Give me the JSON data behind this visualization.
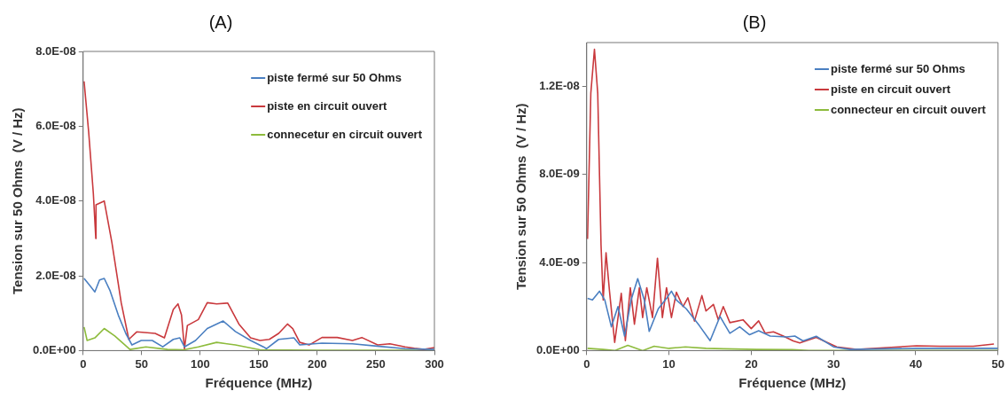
{
  "chart_data": [
    {
      "type": "line",
      "title": "(A)",
      "xlabel": "Fréquence (MHz)",
      "ylabel": "Tension sur 50 Ohms  (V / Hz)",
      "xlim": [
        0,
        300
      ],
      "xticks": [
        0,
        50,
        100,
        150,
        200,
        250,
        300
      ],
      "ylim": [
        0,
        8e-08
      ],
      "yticks": [
        {
          "value": 0,
          "label": "0.0E+00"
        },
        {
          "value": 2e-08,
          "label": "2.0E-08"
        },
        {
          "value": 4e-08,
          "label": "4.0E-08"
        },
        {
          "value": 6e-08,
          "label": "6.0E-08"
        },
        {
          "value": 8e-08,
          "label": "8.0E-08"
        }
      ],
      "grid": false,
      "legend": "top right",
      "marker": "none",
      "line_style": "solid",
      "series": [
        {
          "name": "piste fermé sur 50 Ohms",
          "color": "#4a7fc1",
          "x": [
            0.8,
            6,
            10,
            14,
            18,
            23,
            30,
            36.4,
            41.7,
            49.6,
            59,
            68,
            77,
            82.6,
            86.5,
            96,
            106,
            119.6,
            130,
            143,
            154,
            156.5,
            167,
            180,
            185,
            204,
            230,
            251,
            275,
            300
          ],
          "values": [
            1.93e-08,
            1.73e-08,
            1.57e-08,
            1.89e-08,
            1.93e-08,
            1.6e-08,
            9.5e-09,
            4.6e-09,
            1.5e-09,
            2.7e-09,
            2.7e-09,
            1e-09,
            3e-09,
            3.4e-09,
            1e-09,
            2.7e-09,
            5.9e-09,
            7.9e-09,
            5.1e-09,
            2.7e-09,
            1e-09,
            5e-10,
            3e-09,
            3.4e-09,
            1.5e-09,
            2e-09,
            1.8e-09,
            1.2e-09,
            5e-10,
            3e-10
          ]
        },
        {
          "name": "piste en circuit ouvert",
          "color": "#c9393d",
          "x": [
            0.8,
            4.7,
            8.7,
            10.8,
            11,
            18,
            24.5,
            32.5,
            39,
            45.7,
            61.5,
            69.4,
            77,
            81,
            84,
            86.5,
            89,
            98.4,
            106,
            114,
            123.5,
            133,
            143,
            151,
            159,
            167,
            174.5,
            179,
            185,
            193,
            204,
            217,
            230,
            238,
            251.5,
            262,
            275,
            283,
            291,
            300
          ],
          "values": [
            7.2e-08,
            5.85e-08,
            4.2e-08,
            3e-08,
            3.9e-08,
            4e-08,
            2.9e-08,
            1.28e-08,
            3e-09,
            5e-09,
            4.6e-09,
            3.4e-09,
            1.1e-08,
            1.25e-08,
            9.5e-09,
            5e-10,
            6.7e-09,
            8.3e-09,
            1.28e-08,
            1.25e-08,
            1.27e-08,
            7.1e-09,
            3.4e-09,
            2.7e-09,
            3e-09,
            4.6e-09,
            7.1e-09,
            5.9e-09,
            2.2e-09,
            1.5e-09,
            3.5e-09,
            3.5e-09,
            2.7e-09,
            3.5e-09,
            1.5e-09,
            1.8e-09,
            1e-09,
            6e-10,
            3e-10,
            8e-10
          ]
        },
        {
          "name": "connecetur en circuit ouvert",
          "color": "#8dbb3c",
          "x": [
            0.8,
            3.4,
            10,
            18,
            27,
            40,
            53.6,
            72,
            86,
            98.4,
            114,
            130,
            151,
            200,
            300
          ],
          "values": [
            6.3e-09,
            2.7e-09,
            3.4e-09,
            5.9e-09,
            3.9e-09,
            3e-10,
            1e-09,
            3e-10,
            2e-10,
            1e-09,
            2.2e-09,
            1.5e-09,
            2e-10,
            1e-10,
            1e-10
          ]
        }
      ]
    },
    {
      "type": "line",
      "title": "(B)",
      "xlabel": "Fréquence (MHz)",
      "ylabel": "Tension sur 50 Ohms  (V / Hz)",
      "xlim": [
        0,
        50
      ],
      "xticks": [
        0,
        10,
        20,
        30,
        40,
        50
      ],
      "ylim": [
        0,
        1.4e-08
      ],
      "yticks": [
        {
          "value": 0,
          "label": "0.0E+00"
        },
        {
          "value": 4e-09,
          "label": "4.0E-09"
        },
        {
          "value": 8e-09,
          "label": "8.0E-09"
        },
        {
          "value": 1.2e-08,
          "label": "1.2E-08"
        }
      ],
      "grid": false,
      "legend": "top right",
      "marker": "none",
      "line_style": "solid",
      "series": [
        {
          "name": "piste fermé sur 50 Ohms",
          "color": "#4a7fc1",
          "x": [
            0.1,
            0.7,
            1.55,
            2.2,
            3.0,
            3.8,
            4.6,
            5.4,
            6.2,
            7.0,
            7.6,
            8.7,
            9.7,
            10.3,
            10.9,
            12.1,
            13.7,
            15,
            16.2,
            17.4,
            18.6,
            19.8,
            20.9,
            22.3,
            24.3,
            25.3,
            26.3,
            27.9,
            30,
            32,
            40,
            50
          ],
          "values": [
            2.37e-09,
            2.3e-09,
            2.7e-09,
            2.3e-09,
            1.08e-09,
            2e-09,
            6.6e-10,
            2.3e-09,
            3.27e-09,
            2.3e-09,
            8.7e-10,
            1.9e-09,
            2.37e-09,
            2.7e-09,
            2.3e-09,
            1.9e-09,
            1.13e-09,
            4.5e-10,
            1.55e-09,
            7.9e-10,
            1.08e-09,
            7.2e-10,
            9e-10,
            6.6e-10,
            6.2e-10,
            6.6e-10,
            4.4e-10,
            6.5e-10,
            1.7e-10,
            5e-11,
            1e-10,
            1e-10
          ]
        },
        {
          "name": "piste en circuit ouvert",
          "color": "#c9393d",
          "x": [
            0.1,
            0.5,
            0.94,
            1.34,
            1.74,
            2.0,
            2.35,
            2.77,
            3.4,
            4.2,
            4.7,
            5.3,
            5.8,
            6.4,
            6.8,
            7.3,
            8.0,
            8.6,
            9.2,
            9.7,
            10.3,
            10.9,
            11.7,
            12.3,
            13.1,
            14,
            14.5,
            15.4,
            16,
            16.6,
            17.4,
            19,
            20,
            20.9,
            21.7,
            22.7,
            23.9,
            25.1,
            25.9,
            27.9,
            30.4,
            32.8,
            40.1,
            43,
            47,
            49.5
          ],
          "values": [
            5.07e-09,
            1.17e-08,
            1.37e-08,
            1.17e-08,
            4.8e-09,
            2.3e-09,
            4.45e-09,
            2.7e-09,
            3.7e-10,
            2.6e-09,
            4.5e-10,
            2.86e-09,
            1.2e-09,
            2.86e-09,
            1.5e-09,
            2.86e-09,
            1.5e-09,
            4.2e-09,
            1.5e-09,
            2.86e-09,
            1.5e-09,
            2.65e-09,
            2e-09,
            2.4e-09,
            1.34e-09,
            2.5e-09,
            1.8e-09,
            2.1e-09,
            1.4e-09,
            2e-09,
            1.27e-09,
            1.4e-09,
            1e-09,
            1.35e-09,
            7.9e-10,
            8.5e-10,
            6.6e-10,
            4.4e-10,
            3.5e-10,
            6e-10,
            1.7e-10,
            5e-11,
            2.2e-10,
            2e-10,
            2e-10,
            3e-10
          ]
        },
        {
          "name": "connecteur en circuit ouvert",
          "color": "#8dbb3c",
          "x": [
            0.1,
            2,
            3.4,
            5,
            6.8,
            8.2,
            10,
            12,
            14.5,
            16.6,
            20.7,
            25,
            27,
            31,
            50
          ],
          "values": [
            1e-10,
            5e-11,
            0,
            2.4e-10,
            0,
            2e-10,
            1e-10,
            1.7e-10,
            1e-10,
            8e-11,
            5e-11,
            4e-11,
            0,
            0,
            0
          ]
        }
      ]
    }
  ]
}
